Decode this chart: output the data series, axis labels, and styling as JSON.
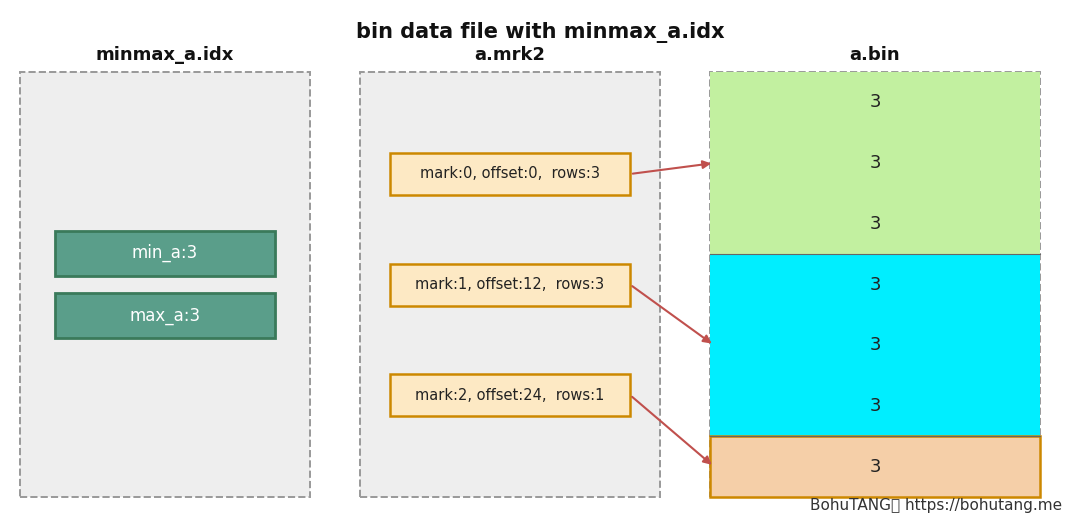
{
  "title": "bin data file with minmax_a.idx",
  "title_fontsize": 15,
  "title_fontweight": "bold",
  "bg_color": "#ffffff",
  "panel_bg": "#eeeeee",
  "panel_border": "#999999",
  "panel1_label": "minmax_a.idx",
  "panel2_label": "a.mrk2",
  "panel3_label": "a.bin",
  "minmax_boxes": [
    {
      "label": "min_a:3",
      "color": "#5a9e8a",
      "border": "#3a7a5a",
      "text_color": "#ffffff"
    },
    {
      "label": "max_a:3",
      "color": "#5a9e8a",
      "border": "#3a7a5a",
      "text_color": "#ffffff"
    }
  ],
  "mark_boxes": [
    {
      "label": "mark:0, offset:0,  rows:3",
      "color": "#fde9c4",
      "border": "#cc8800"
    },
    {
      "label": "mark:1, offset:12,  rows:3",
      "color": "#fde9c4",
      "border": "#cc8800"
    },
    {
      "label": "mark:2, offset:24,  rows:1",
      "color": "#fde9c4",
      "border": "#cc8800"
    }
  ],
  "bin_sections": [
    {
      "color": "#c2f0a0",
      "rows": 3,
      "values": [
        "3",
        "3",
        "3"
      ]
    },
    {
      "color": "#00eeff",
      "rows": 3,
      "values": [
        "3",
        "3",
        "3"
      ]
    },
    {
      "color": "#f5cfa8",
      "rows": 1,
      "values": [
        "3"
      ],
      "border": "#cc8800"
    }
  ],
  "arrow_color": "#c0504d",
  "footer_text": "BohuTANG作 https://bohutang.me",
  "footer_fontsize": 11,
  "fig_w": 10.8,
  "fig_h": 5.19,
  "dpi": 100
}
